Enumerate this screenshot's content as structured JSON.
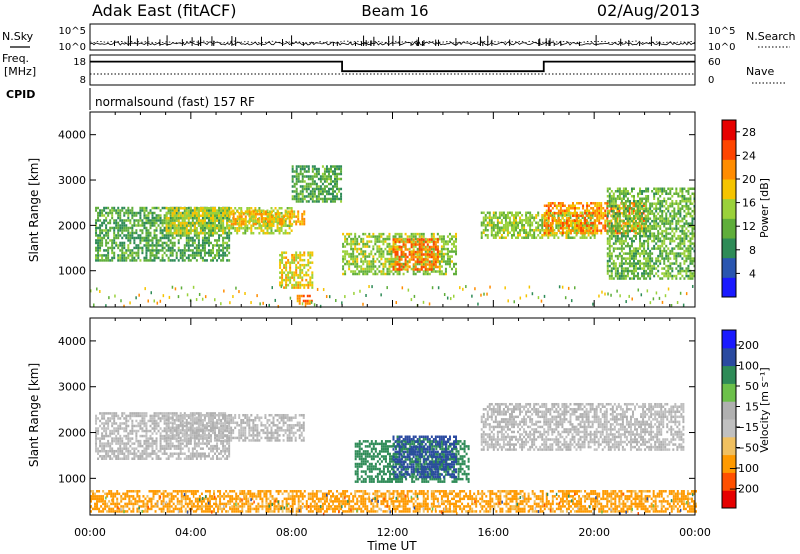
{
  "header": {
    "station": "Adak East (fitACF)",
    "beam": "Beam 16",
    "date": "02/Aug/2013"
  },
  "noise_panel": {
    "left_label": "N.Sky",
    "right_label": "N.Search",
    "left_ticks": [
      "10^5",
      "10^0"
    ],
    "right_ticks": [
      "10^5",
      "10^0"
    ]
  },
  "freq_panel": {
    "left_label_line1": "Freq.",
    "left_label_line2": "[MHz]",
    "right_label": "Nave",
    "left_ticks": [
      "18",
      "8"
    ],
    "right_ticks": [
      "60",
      "0"
    ],
    "segments": [
      {
        "start_hour": 0,
        "end_hour": 10.0,
        "level": 0.85
      },
      {
        "start_hour": 10.0,
        "end_hour": 18.0,
        "level": 0.45
      },
      {
        "start_hour": 18.0,
        "end_hour": 24,
        "level": 0.85
      }
    ]
  },
  "cpid_panel": {
    "label": "CPID",
    "program": "normalsound (fast) 157 RF"
  },
  "colors": {
    "frame": "#000000",
    "power_scale": [
      "#1a1aff",
      "#2a56b0",
      "#2e8b57",
      "#5fae3a",
      "#9ad13a",
      "#f5c400",
      "#ff8c00",
      "#ff4500",
      "#e60000"
    ],
    "velocity_scale": [
      "#e60000",
      "#ff5000",
      "#ff9a00",
      "#f0c060",
      "#c0c0c0",
      "#b0b0b0",
      "#6cc04a",
      "#2e8b57",
      "#2a4aa0",
      "#1a1aff"
    ]
  },
  "chart_data": [
    {
      "type": "heatmap",
      "name": "power",
      "xlabel": "Time UT",
      "ylabel": "Slant Range [km]",
      "xlim": [
        0,
        24
      ],
      "ylim": [
        200,
        4500
      ],
      "x_ticks": [
        "00:00",
        "04:00",
        "08:00",
        "12:00",
        "16:00",
        "20:00",
        "00:00"
      ],
      "y_ticks": [
        1000,
        2000,
        3000,
        4000
      ],
      "colorbar": {
        "label": "Power [dB]",
        "ticks": [
          4,
          8,
          12,
          16,
          20,
          24,
          28
        ],
        "range": [
          0,
          30
        ]
      },
      "regions": [
        {
          "t0": 0.2,
          "t1": 5.5,
          "r0": 1200,
          "r1": 2400,
          "value": 10
        },
        {
          "t0": 3.0,
          "t1": 8.0,
          "r0": 1800,
          "r1": 2400,
          "value": 16
        },
        {
          "t0": 5.5,
          "t1": 8.5,
          "r0": 2000,
          "r1": 2300,
          "value": 20
        },
        {
          "t0": 7.5,
          "t1": 8.8,
          "r0": 600,
          "r1": 1400,
          "value": 18
        },
        {
          "t0": 8.2,
          "t1": 8.8,
          "r0": 250,
          "r1": 450,
          "value": 24
        },
        {
          "t0": 8.0,
          "t1": 10.0,
          "r0": 2500,
          "r1": 3300,
          "value": 10
        },
        {
          "t0": 10.0,
          "t1": 14.5,
          "r0": 900,
          "r1": 1800,
          "value": 14
        },
        {
          "t0": 12.0,
          "t1": 13.8,
          "r0": 1000,
          "r1": 1700,
          "value": 24
        },
        {
          "t0": 15.5,
          "t1": 20.0,
          "r0": 1700,
          "r1": 2300,
          "value": 14
        },
        {
          "t0": 18.0,
          "t1": 22.0,
          "r0": 1800,
          "r1": 2500,
          "value": 22
        },
        {
          "t0": 20.5,
          "t1": 24.0,
          "r0": 800,
          "r1": 2800,
          "value": 12
        }
      ]
    },
    {
      "type": "heatmap",
      "name": "velocity",
      "xlabel": "Time UT",
      "ylabel": "Slant Range [km]",
      "xlim": [
        0,
        24
      ],
      "ylim": [
        200,
        4500
      ],
      "x_ticks": [
        "00:00",
        "04:00",
        "08:00",
        "12:00",
        "16:00",
        "20:00",
        "00:00"
      ],
      "y_ticks": [
        1000,
        2000,
        3000,
        4000
      ],
      "colorbar": {
        "label": "Velocity [m s⁻¹]",
        "ticks": [
          "200",
          "100",
          "50",
          "15",
          "−15",
          "−50",
          "−100",
          "−200"
        ]
      },
      "regions": [
        {
          "t0": 0.2,
          "t1": 5.5,
          "r0": 1400,
          "r1": 2400,
          "value": 0
        },
        {
          "t0": 3.0,
          "t1": 8.5,
          "r0": 1800,
          "r1": 2400,
          "value": 0
        },
        {
          "t0": 10.5,
          "t1": 15.0,
          "r0": 900,
          "r1": 1800,
          "value": 80
        },
        {
          "t0": 12.0,
          "t1": 14.5,
          "r0": 1000,
          "r1": 1900,
          "value": 110
        },
        {
          "t0": 15.5,
          "t1": 23.5,
          "r0": 1600,
          "r1": 2600,
          "value": 0
        },
        {
          "t0": 0.0,
          "t1": 24.0,
          "r0": 250,
          "r1": 700,
          "value": -60
        }
      ]
    }
  ]
}
